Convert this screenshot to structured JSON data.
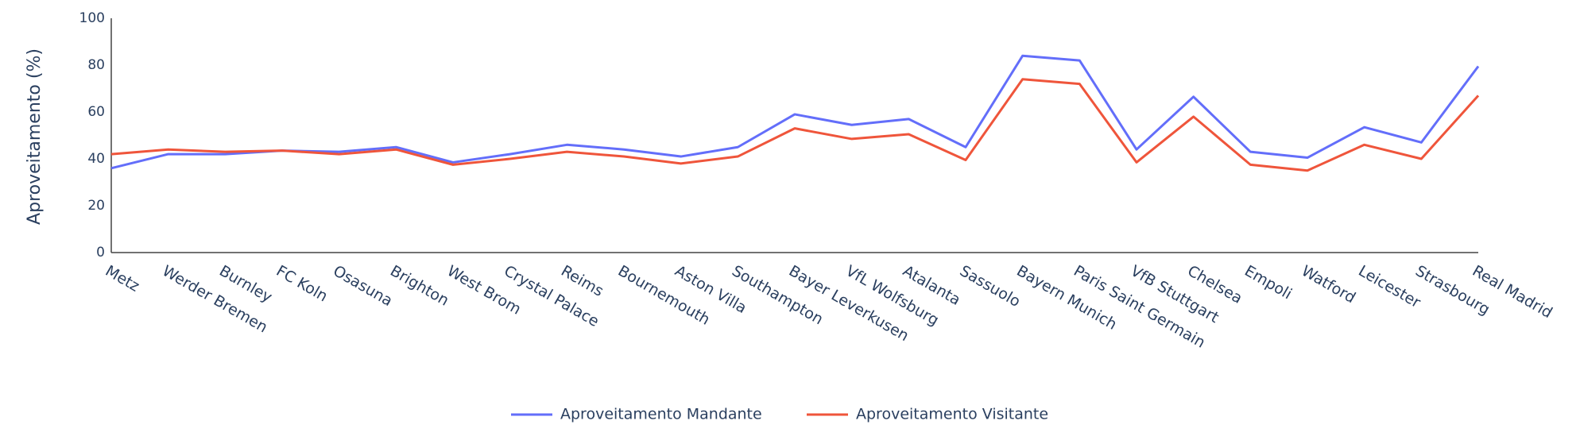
{
  "chart_data": {
    "type": "line",
    "y_label": "Aproveitamento (%)",
    "categories": [
      "Metz",
      "Werder Bremen",
      "Burnley",
      "FC Koln",
      "Osasuna",
      "Brighton",
      "West Brom",
      "Crystal Palace",
      "Reims",
      "Bournemouth",
      "Aston Villa",
      "Southampton",
      "Bayer Leverkusen",
      "VfL Wolfsburg",
      "Atalanta",
      "Sassuolo",
      "Bayern Munich",
      "Paris Saint Germain",
      "VfB Stuttgart",
      "Chelsea",
      "Empoli",
      "Watford",
      "Leicester",
      "Strasbourg",
      "Real Madrid"
    ],
    "series": [
      {
        "name": "Aproveitamento Mandante",
        "color": "#636efa",
        "values": [
          36,
          42,
          42,
          43.5,
          43,
          45,
          38.5,
          42,
          46,
          44,
          41,
          45,
          59,
          54.5,
          57,
          45,
          84,
          82,
          44,
          66.5,
          43,
          40.5,
          53.5,
          47,
          79.5
        ]
      },
      {
        "name": "Aproveitamento Visitante",
        "color": "#EF553B",
        "values": [
          42,
          44,
          43,
          43.5,
          42,
          44,
          37.5,
          40,
          43,
          41,
          38,
          41,
          53,
          48.5,
          50.5,
          39.5,
          74,
          72,
          38.5,
          58,
          37.5,
          35,
          46,
          40,
          67
        ]
      }
    ],
    "ylim": [
      0,
      100
    ],
    "yticks": [
      0,
      20,
      40,
      60,
      80,
      100
    ],
    "grid": false
  }
}
